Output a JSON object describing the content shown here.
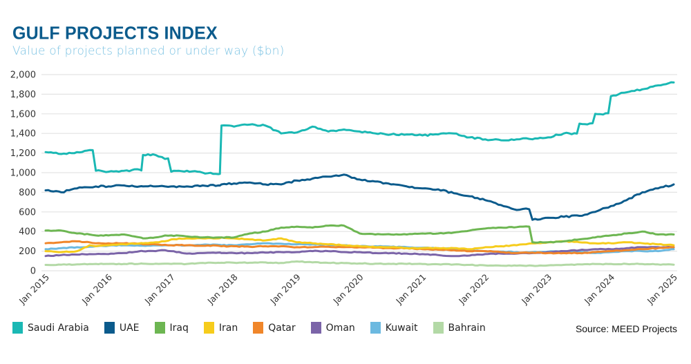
{
  "chart_data": {
    "type": "line",
    "title": "GULF PROJECTS INDEX",
    "subtitle": "Value of projects planned or under way ($bn)",
    "xlabel": "",
    "ylabel": "",
    "ylim": [
      0,
      2000
    ],
    "yticks": [
      0,
      200,
      400,
      600,
      800,
      1000,
      1200,
      1400,
      1600,
      1800,
      2000
    ],
    "ytick_labels": [
      "0",
      "200",
      "400",
      "600",
      "800",
      "1,000",
      "1,200",
      "1,400",
      "1,600",
      "1,800",
      "2,000"
    ],
    "xlim": [
      2015.0,
      2025.0
    ],
    "xticks": [
      2015,
      2016,
      2017,
      2018,
      2019,
      2020,
      2021,
      2022,
      2023,
      2024,
      2025
    ],
    "xtick_labels": [
      "Jan 2015",
      "Jan 2016",
      "Jan 2017",
      "Jan 2018",
      "Jan 2019",
      "Jan 2020",
      "Jan 2021",
      "Jan 2022",
      "Jan 2023",
      "Jan 2024",
      "Jan 2025"
    ],
    "grid": true,
    "legend_position": "bottom-left",
    "source": "Source: MEED Projects",
    "x": [
      2015.0,
      2015.25,
      2015.5,
      2015.7,
      2015.8,
      2016.0,
      2016.25,
      2016.5,
      2016.55,
      2016.75,
      2016.9,
      2017.0,
      2017.25,
      2017.5,
      2017.75,
      2017.8,
      2018.0,
      2018.25,
      2018.5,
      2018.75,
      2019.0,
      2019.25,
      2019.5,
      2019.75,
      2020.0,
      2020.25,
      2020.5,
      2020.75,
      2021.0,
      2021.25,
      2021.5,
      2021.75,
      2022.0,
      2022.25,
      2022.5,
      2022.6,
      2022.75,
      2023.0,
      2023.25,
      2023.5,
      2023.75,
      2024.0,
      2024.25,
      2024.5,
      2024.75,
      2025.0
    ],
    "series": [
      {
        "name": "Saudi Arabia",
        "color": "#1ab8b4",
        "values": [
          1210,
          1190,
          1210,
          1230,
          1020,
          1010,
          1020,
          1030,
          1180,
          1180,
          1140,
          1010,
          1020,
          1000,
          985,
          1480,
          1470,
          1490,
          1480,
          1400,
          1410,
          1470,
          1420,
          1440,
          1420,
          1400,
          1390,
          1390,
          1380,
          1390,
          1400,
          1360,
          1340,
          1330,
          1340,
          1350,
          1340,
          1360,
          1400,
          1500,
          1600,
          1780,
          1820,
          1850,
          1890,
          1920
        ]
      },
      {
        "name": "UAE",
        "color": "#0b5b8c",
        "values": [
          820,
          800,
          840,
          850,
          860,
          860,
          870,
          860,
          860,
          860,
          860,
          860,
          860,
          870,
          870,
          880,
          890,
          900,
          880,
          880,
          920,
          940,
          960,
          980,
          930,
          910,
          880,
          860,
          840,
          830,
          790,
          760,
          720,
          670,
          620,
          630,
          520,
          540,
          550,
          560,
          600,
          660,
          720,
          800,
          840,
          880
        ]
      },
      {
        "name": "Iraq",
        "color": "#6db652",
        "values": [
          410,
          410,
          380,
          370,
          360,
          360,
          370,
          340,
          330,
          340,
          360,
          360,
          350,
          340,
          340,
          340,
          340,
          380,
          400,
          440,
          450,
          440,
          460,
          460,
          380,
          370,
          370,
          370,
          380,
          380,
          390,
          410,
          430,
          440,
          445,
          450,
          290,
          290,
          300,
          320,
          340,
          360,
          380,
          400,
          370,
          370
        ]
      },
      {
        "name": "Iran",
        "color": "#f6cc1c",
        "values": [
          200,
          190,
          200,
          260,
          250,
          260,
          270,
          280,
          280,
          290,
          300,
          320,
          330,
          330,
          330,
          340,
          330,
          320,
          310,
          330,
          290,
          280,
          270,
          260,
          250,
          240,
          240,
          230,
          230,
          230,
          230,
          220,
          240,
          250,
          260,
          270,
          280,
          290,
          300,
          290,
          280,
          280,
          290,
          280,
          270,
          260
        ]
      },
      {
        "name": "Qatar",
        "color": "#f0862a",
        "values": [
          280,
          290,
          300,
          290,
          280,
          280,
          280,
          275,
          270,
          270,
          265,
          260,
          260,
          255,
          255,
          250,
          250,
          245,
          250,
          250,
          240,
          240,
          245,
          240,
          240,
          235,
          230,
          230,
          220,
          215,
          210,
          200,
          200,
          190,
          180,
          185,
          185,
          180,
          180,
          180,
          190,
          200,
          210,
          220,
          230,
          240
        ]
      },
      {
        "name": "Oman",
        "color": "#7b64a8",
        "values": [
          150,
          160,
          165,
          170,
          170,
          170,
          180,
          200,
          200,
          200,
          210,
          200,
          175,
          180,
          185,
          180,
          180,
          180,
          185,
          190,
          190,
          200,
          200,
          190,
          190,
          180,
          180,
          175,
          170,
          160,
          150,
          155,
          170,
          175,
          175,
          180,
          180,
          190,
          200,
          210,
          220,
          220,
          230,
          240,
          240,
          240
        ]
      },
      {
        "name": "Kuwait",
        "color": "#6cb9e0",
        "values": [
          220,
          230,
          240,
          245,
          250,
          255,
          260,
          255,
          255,
          260,
          260,
          260,
          260,
          265,
          265,
          260,
          260,
          270,
          280,
          275,
          270,
          270,
          265,
          260,
          250,
          250,
          245,
          240,
          235,
          230,
          225,
          210,
          200,
          195,
          190,
          185,
          190,
          195,
          200,
          190,
          180,
          190,
          200,
          200,
          200,
          220
        ]
      },
      {
        "name": "Bahrain",
        "color": "#b3d9a6",
        "values": [
          60,
          62,
          65,
          68,
          70,
          70,
          70,
          72,
          72,
          72,
          72,
          70,
          70,
          80,
          82,
          82,
          82,
          82,
          85,
          80,
          95,
          85,
          80,
          78,
          75,
          72,
          70,
          70,
          68,
          66,
          64,
          60,
          55,
          52,
          52,
          52,
          52,
          55,
          60,
          65,
          68,
          70,
          70,
          68,
          65,
          62
        ]
      }
    ]
  }
}
